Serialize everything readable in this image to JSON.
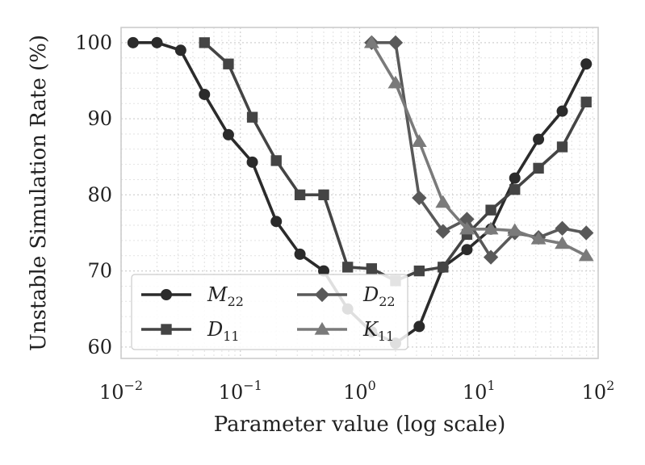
{
  "chart_data": {
    "type": "line",
    "title": "",
    "xlabel": "Parameter value (log scale)",
    "ylabel": "Unstable Simulation Rate (%)",
    "xscale": "log",
    "xlim": [
      0.01,
      100
    ],
    "ylim": [
      58.5,
      102
    ],
    "grid": true,
    "legend_position": "lower-left",
    "x_ticks": [
      {
        "value": 0.01,
        "base": "10",
        "exp": "−2"
      },
      {
        "value": 0.1,
        "base": "10",
        "exp": "−1"
      },
      {
        "value": 1,
        "base": "10",
        "exp": "0"
      },
      {
        "value": 10,
        "base": "10",
        "exp": "1"
      },
      {
        "value": 100,
        "base": "10",
        "exp": "2"
      }
    ],
    "y_ticks": [
      {
        "value": 60,
        "label": "60"
      },
      {
        "value": 70,
        "label": "70"
      },
      {
        "value": 80,
        "label": "80"
      },
      {
        "value": 90,
        "label": "90"
      },
      {
        "value": 100,
        "label": "100"
      }
    ],
    "series": [
      {
        "name": "M22",
        "label_main": "M",
        "label_sub": "22",
        "color": "#2b2b2b",
        "marker": "circle",
        "x": [
          0.0126,
          0.02,
          0.0316,
          0.05,
          0.0794,
          0.126,
          0.2,
          0.316,
          0.5,
          0.794,
          1.26,
          2.0,
          3.16,
          5.0,
          7.94,
          12.6,
          20.0,
          31.6,
          50.0,
          79.4
        ],
        "y": [
          100,
          100,
          99,
          93.2,
          87.9,
          84.3,
          76.5,
          72.2,
          70.0,
          65.0,
          62.0,
          60.5,
          62.7,
          70.5,
          72.8,
          75.5,
          82.2,
          87.3,
          91.0,
          97.2
        ]
      },
      {
        "name": "D11",
        "label_main": "D",
        "label_sub": "11",
        "color": "#444444",
        "marker": "square",
        "x": [
          0.05,
          0.0794,
          0.126,
          0.2,
          0.316,
          0.5,
          0.794,
          1.26,
          2.0,
          3.16,
          5.0,
          7.94,
          12.6,
          20.0,
          31.6,
          50.0,
          79.4
        ],
        "y": [
          100,
          97.2,
          90.2,
          84.5,
          80.0,
          80.0,
          70.5,
          70.3,
          68.7,
          70.0,
          70.5,
          74.8,
          78.0,
          80.7,
          83.5,
          86.3,
          92.2
        ]
      },
      {
        "name": "D22",
        "label_main": "D",
        "label_sub": "22",
        "color": "#595959",
        "marker": "diamond",
        "x": [
          1.26,
          2.0,
          3.16,
          5.0,
          7.94,
          12.6,
          20.0,
          31.6,
          50.0,
          79.4
        ],
        "y": [
          100,
          100,
          79.6,
          75.2,
          76.8,
          71.8,
          75.0,
          74.4,
          75.6,
          75.0
        ]
      },
      {
        "name": "K11",
        "label_main": "K",
        "label_sub": "11",
        "color": "#7a7a7a",
        "marker": "triangle",
        "x": [
          1.26,
          2.0,
          3.16,
          5.0,
          7.94,
          12.6,
          20.0,
          31.6,
          50.0,
          79.4
        ],
        "y": [
          100,
          94.7,
          87.0,
          79.0,
          75.5,
          75.5,
          75.3,
          74.2,
          73.6,
          72.0
        ]
      }
    ]
  }
}
